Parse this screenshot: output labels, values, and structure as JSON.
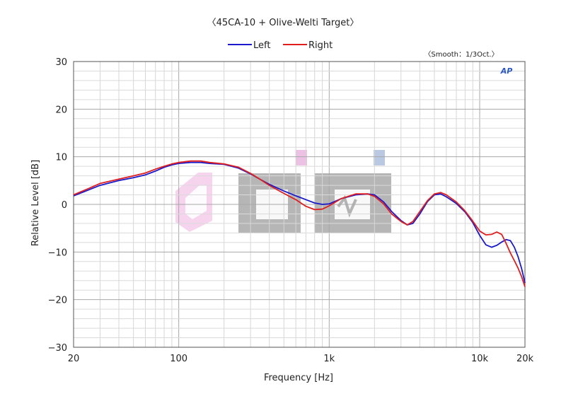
{
  "chart_data": {
    "type": "line",
    "title": "〈45CA-10 + Olive-Welti Target〉",
    "smoothing_note": "〈Smooth：1/3Oct.〉",
    "logo_text": "AP",
    "xlabel": "Frequency [Hz]",
    "ylabel": "Relative Level [dB]",
    "x_scale": "log",
    "xlim": [
      20,
      20000
    ],
    "ylim": [
      -30,
      30
    ],
    "x_ticks": [
      {
        "value": 20,
        "label": "20"
      },
      {
        "value": 100,
        "label": "100"
      },
      {
        "value": 1000,
        "label": "1k"
      },
      {
        "value": 10000,
        "label": "10k"
      },
      {
        "value": 20000,
        "label": "20k"
      }
    ],
    "y_ticks": [
      {
        "value": 30,
        "label": "30"
      },
      {
        "value": 20,
        "label": "20"
      },
      {
        "value": 10,
        "label": "10"
      },
      {
        "value": 0,
        "label": "0"
      },
      {
        "value": -10,
        "label": "−10"
      },
      {
        "value": -20,
        "label": "−20"
      },
      {
        "value": -30,
        "label": "−30"
      }
    ],
    "grid": true,
    "legend_position": "top-center",
    "series": [
      {
        "name": "Left",
        "color": "#1a1acc",
        "points": [
          [
            20,
            1.8
          ],
          [
            25,
            3
          ],
          [
            30,
            4
          ],
          [
            40,
            5
          ],
          [
            50,
            5.6
          ],
          [
            60,
            6.2
          ],
          [
            70,
            7
          ],
          [
            80,
            7.8
          ],
          [
            90,
            8.3
          ],
          [
            100,
            8.6
          ],
          [
            120,
            8.8
          ],
          [
            140,
            8.8
          ],
          [
            160,
            8.6
          ],
          [
            200,
            8.4
          ],
          [
            250,
            7.6
          ],
          [
            300,
            6.4
          ],
          [
            350,
            5.2
          ],
          [
            400,
            4.2
          ],
          [
            500,
            2.8
          ],
          [
            600,
            1.8
          ],
          [
            700,
            1
          ],
          [
            800,
            0.3
          ],
          [
            900,
            0
          ],
          [
            1000,
            0.1
          ],
          [
            1200,
            1.2
          ],
          [
            1500,
            2
          ],
          [
            1800,
            2.2
          ],
          [
            2000,
            2
          ],
          [
            2300,
            0.5
          ],
          [
            2600,
            -1.5
          ],
          [
            3000,
            -3.4
          ],
          [
            3300,
            -4.3
          ],
          [
            3600,
            -4
          ],
          [
            4000,
            -2
          ],
          [
            4500,
            0.6
          ],
          [
            5000,
            2
          ],
          [
            5500,
            2.2
          ],
          [
            6000,
            1.6
          ],
          [
            7000,
            0.2
          ],
          [
            8000,
            -1.6
          ],
          [
            9000,
            -3.8
          ],
          [
            10000,
            -6.5
          ],
          [
            11000,
            -8.5
          ],
          [
            12000,
            -9
          ],
          [
            13000,
            -8.6
          ],
          [
            14000,
            -7.9
          ],
          [
            15000,
            -7.4
          ],
          [
            16000,
            -7.6
          ],
          [
            17000,
            -9
          ],
          [
            18000,
            -11
          ],
          [
            19000,
            -13.5
          ],
          [
            20000,
            -16.5
          ]
        ]
      },
      {
        "name": "Right",
        "color": "#e01e1e",
        "points": [
          [
            20,
            2
          ],
          [
            25,
            3.3
          ],
          [
            30,
            4.4
          ],
          [
            40,
            5.3
          ],
          [
            50,
            6
          ],
          [
            60,
            6.6
          ],
          [
            70,
            7.4
          ],
          [
            80,
            8
          ],
          [
            90,
            8.5
          ],
          [
            100,
            8.8
          ],
          [
            120,
            9.1
          ],
          [
            140,
            9.1
          ],
          [
            160,
            8.8
          ],
          [
            200,
            8.5
          ],
          [
            250,
            7.8
          ],
          [
            300,
            6.5
          ],
          [
            350,
            5.2
          ],
          [
            400,
            4
          ],
          [
            500,
            2.3
          ],
          [
            600,
            1
          ],
          [
            700,
            -0.4
          ],
          [
            800,
            -1.1
          ],
          [
            900,
            -1
          ],
          [
            1000,
            -0.3
          ],
          [
            1200,
            1.2
          ],
          [
            1500,
            2.2
          ],
          [
            1800,
            2.2
          ],
          [
            2000,
            1.7
          ],
          [
            2300,
            0.1
          ],
          [
            2600,
            -2
          ],
          [
            3000,
            -3.6
          ],
          [
            3300,
            -4.3
          ],
          [
            3600,
            -3.6
          ],
          [
            4000,
            -1.5
          ],
          [
            4500,
            0.8
          ],
          [
            5000,
            2.2
          ],
          [
            5500,
            2.5
          ],
          [
            6000,
            2
          ],
          [
            7000,
            0.5
          ],
          [
            8000,
            -1.4
          ],
          [
            9000,
            -3.5
          ],
          [
            10000,
            -5.6
          ],
          [
            11000,
            -6.4
          ],
          [
            12000,
            -6.3
          ],
          [
            13000,
            -5.8
          ],
          [
            14000,
            -6.3
          ],
          [
            15000,
            -8.2
          ],
          [
            16000,
            -10.2
          ],
          [
            17000,
            -11.8
          ],
          [
            18000,
            -13.4
          ],
          [
            19000,
            -15.2
          ],
          [
            20000,
            -17.3
          ]
        ]
      }
    ]
  }
}
